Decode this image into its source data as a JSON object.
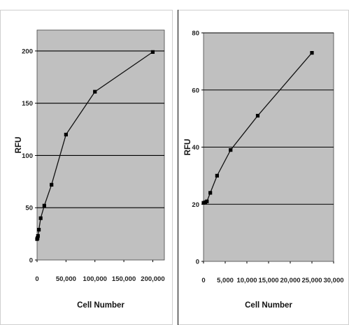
{
  "chart_data": [
    {
      "type": "line",
      "xlabel": "Cell Number",
      "ylabel": "RFU",
      "xlim": [
        0,
        220000
      ],
      "ylim": [
        0,
        220
      ],
      "xticks": [
        0,
        50000,
        100000,
        150000,
        200000
      ],
      "xtick_labels": [
        "0",
        "50,000",
        "100,000",
        "150,000",
        "200,000"
      ],
      "yticks": [
        0,
        50,
        100,
        150,
        200
      ],
      "ytick_labels": [
        "0",
        "50",
        "100",
        "150",
        "200"
      ],
      "grid": "horizontal",
      "plot_background": "#c0c0c0",
      "line_color": "#111111",
      "series": [
        {
          "x": [
            0,
            780,
            1560,
            3125,
            6250,
            12500,
            25000,
            50000,
            100000,
            200000
          ],
          "y": [
            20,
            21,
            23,
            29,
            40,
            52,
            72,
            120,
            161,
            199
          ]
        }
      ]
    },
    {
      "type": "line",
      "xlabel": "Cell Number",
      "ylabel": "RFU",
      "xlim": [
        0,
        30000
      ],
      "ylim": [
        0,
        80
      ],
      "xticks": [
        0,
        5000,
        10000,
        15000,
        20000,
        25000,
        30000
      ],
      "xtick_labels": [
        "0",
        "5,000",
        "10,000",
        "15,000",
        "20,000",
        "25,000",
        "30,000"
      ],
      "yticks": [
        0,
        20,
        40,
        60,
        80
      ],
      "ytick_labels": [
        "0",
        "20",
        "40",
        "60",
        "80"
      ],
      "grid": "horizontal",
      "plot_background": "#c0c0c0",
      "line_color": "#111111",
      "series": [
        {
          "x": [
            0,
            390,
            780,
            1560,
            3125,
            6250,
            12500,
            25000
          ],
          "y": [
            20.5,
            20.7,
            21,
            24,
            30,
            39,
            51,
            73
          ]
        }
      ]
    }
  ]
}
